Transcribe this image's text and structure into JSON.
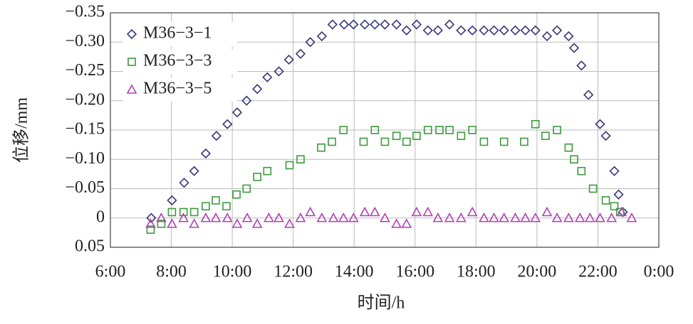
{
  "chart_data": {
    "type": "scatter",
    "xlabel": "时间/h",
    "ylabel": "位移/mm",
    "xlim": [
      6,
      24
    ],
    "xticks": [
      {
        "value": 6,
        "label": "6:00"
      },
      {
        "value": 8,
        "label": "8:00"
      },
      {
        "value": 10,
        "label": "10:00"
      },
      {
        "value": 12,
        "label": "12:00"
      },
      {
        "value": 14,
        "label": "14:00"
      },
      {
        "value": 16,
        "label": "16:00"
      },
      {
        "value": 18,
        "label": "18:00"
      },
      {
        "value": 20,
        "label": "20:00"
      },
      {
        "value": 22,
        "label": "22:00"
      },
      {
        "value": 24,
        "label": "0:00"
      }
    ],
    "ylim": [
      -0.35,
      0.05
    ],
    "y_inverted": true,
    "yticks": [
      {
        "value": -0.35,
        "label": "−0.35"
      },
      {
        "value": -0.3,
        "label": "−0.30"
      },
      {
        "value": -0.25,
        "label": "−0.25"
      },
      {
        "value": -0.2,
        "label": "−0.20"
      },
      {
        "value": -0.15,
        "label": "−0.15"
      },
      {
        "value": -0.1,
        "label": "−0.10"
      },
      {
        "value": -0.05,
        "label": "−0.05"
      },
      0,
      0.05
    ],
    "grid": true,
    "legend": "upper left",
    "series": [
      {
        "name": "M36−3−1",
        "color": "#3a3a7a",
        "marker": "diamond",
        "x": [
          7.34,
          8.02,
          8.42,
          8.75,
          9.13,
          9.48,
          9.84,
          10.16,
          10.47,
          10.82,
          11.15,
          11.53,
          11.86,
          12.24,
          12.56,
          12.94,
          13.29,
          13.67,
          13.98,
          14.35,
          14.68,
          15.01,
          15.39,
          15.72,
          16.05,
          16.42,
          16.75,
          17.13,
          17.51,
          17.88,
          18.26,
          18.59,
          18.92,
          19.29,
          19.62,
          19.95,
          20.33,
          20.66,
          21.04,
          21.22,
          21.46,
          21.69,
          22.07,
          22.26,
          22.54,
          22.68,
          22.82
        ],
        "values": [
          0,
          -0.03,
          -0.06,
          -0.08,
          -0.11,
          -0.14,
          -0.16,
          -0.18,
          -0.2,
          -0.22,
          -0.24,
          -0.25,
          -0.27,
          -0.28,
          -0.3,
          -0.31,
          -0.33,
          -0.33,
          -0.33,
          -0.33,
          -0.33,
          -0.33,
          -0.33,
          -0.32,
          -0.33,
          -0.32,
          -0.32,
          -0.33,
          -0.32,
          -0.32,
          -0.32,
          -0.32,
          -0.32,
          -0.32,
          -0.32,
          -0.32,
          -0.31,
          -0.32,
          -0.31,
          -0.29,
          -0.26,
          -0.21,
          -0.16,
          -0.14,
          -0.08,
          -0.04,
          -0.01
        ]
      },
      {
        "name": "M36−3−3",
        "color": "#3c9a3c",
        "marker": "square",
        "x": [
          7.32,
          7.67,
          8.02,
          8.4,
          8.75,
          9.13,
          9.46,
          9.81,
          10.14,
          10.47,
          10.82,
          11.15,
          11.88,
          12.24,
          12.92,
          13.27,
          13.65,
          14.31,
          14.68,
          15.01,
          15.39,
          15.72,
          16.05,
          16.42,
          16.8,
          17.13,
          17.51,
          17.88,
          18.26,
          18.92,
          19.58,
          19.95,
          20.28,
          20.66,
          21.04,
          21.22,
          21.46,
          21.84,
          22.26,
          22.54,
          22.73
        ],
        "values": [
          0.02,
          0.01,
          -0.01,
          -0.01,
          -0.01,
          -0.02,
          -0.03,
          -0.02,
          -0.04,
          -0.05,
          -0.07,
          -0.08,
          -0.09,
          -0.1,
          -0.12,
          -0.13,
          -0.15,
          -0.13,
          -0.15,
          -0.13,
          -0.14,
          -0.13,
          -0.14,
          -0.15,
          -0.15,
          -0.15,
          -0.14,
          -0.15,
          -0.13,
          -0.13,
          -0.13,
          -0.16,
          -0.14,
          -0.15,
          -0.12,
          -0.1,
          -0.08,
          -0.05,
          -0.03,
          -0.02,
          -0.01
        ]
      },
      {
        "name": "M36−3−5",
        "color": "#b040b0",
        "marker": "triangle",
        "x": [
          7.32,
          7.67,
          8.02,
          8.4,
          8.75,
          9.13,
          9.46,
          9.84,
          10.16,
          10.49,
          10.82,
          11.2,
          11.53,
          11.88,
          12.24,
          12.56,
          12.94,
          13.32,
          13.65,
          13.98,
          14.35,
          14.68,
          15.01,
          15.39,
          15.72,
          16.05,
          16.42,
          16.75,
          17.13,
          17.51,
          17.88,
          18.26,
          18.59,
          18.92,
          19.29,
          19.62,
          19.95,
          20.33,
          20.66,
          21.04,
          21.41,
          21.74,
          22.07,
          22.45,
          22.78,
          23.11
        ],
        "values": [
          0.01,
          0,
          0.01,
          0,
          0.01,
          0,
          0,
          0,
          0.01,
          0,
          0.01,
          0,
          0,
          0.01,
          0,
          -0.01,
          0,
          0,
          0,
          0,
          -0.01,
          -0.01,
          0,
          0.01,
          0.01,
          -0.01,
          -0.01,
          0,
          0,
          0,
          -0.01,
          0,
          0,
          0,
          0,
          0,
          0,
          -0.01,
          0,
          0,
          0,
          0,
          0,
          0,
          -0.01,
          0
        ]
      }
    ]
  }
}
